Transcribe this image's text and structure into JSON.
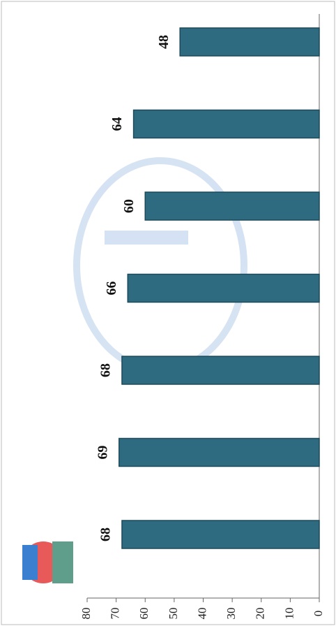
{
  "chart_data": {
    "type": "bar",
    "categories": [
      null,
      null,
      null,
      null,
      null,
      null,
      null
    ],
    "values": [
      68,
      69,
      68,
      66,
      60,
      64,
      48
    ],
    "color": "#2f6b80",
    "ylim": [
      0,
      80
    ],
    "yticks": [
      0,
      10,
      20,
      30,
      40,
      50,
      60,
      70,
      80
    ],
    "grid": false
  }
}
